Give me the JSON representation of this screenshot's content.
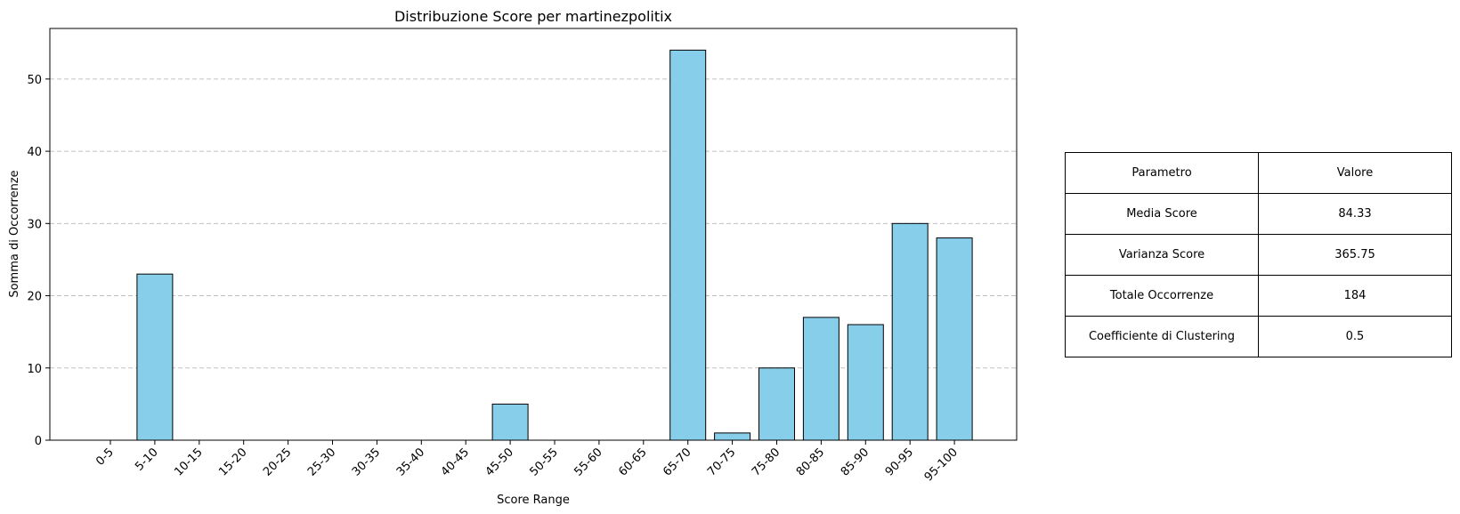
{
  "chart_data": {
    "type": "bar",
    "title": "Distribuzione Score per martinezpolitix",
    "xlabel": "Score Range",
    "ylabel": "Somma di Occorrenze",
    "categories": [
      "0-5",
      "5-10",
      "10-15",
      "15-20",
      "20-25",
      "25-30",
      "30-35",
      "35-40",
      "40-45",
      "45-50",
      "50-55",
      "55-60",
      "60-65",
      "65-70",
      "70-75",
      "75-80",
      "80-85",
      "85-90",
      "90-95",
      "95-100"
    ],
    "values": [
      0,
      23,
      0,
      0,
      0,
      0,
      0,
      0,
      0,
      5,
      0,
      0,
      0,
      54,
      1,
      10,
      17,
      16,
      30,
      28
    ],
    "ylim": [
      0,
      57
    ],
    "yticks": [
      0,
      10,
      20,
      30,
      40,
      50
    ],
    "grid": "y-dashed",
    "bar_color": "#87CEEB",
    "edge_color": "#000000",
    "grid_color": "#c0c0c0"
  },
  "table": {
    "header": {
      "param": "Parametro",
      "value": "Valore"
    },
    "rows": [
      {
        "param": "Media Score",
        "value": "84.33"
      },
      {
        "param": "Varianza Score",
        "value": "365.75"
      },
      {
        "param": "Totale Occorrenze",
        "value": "184"
      },
      {
        "param": "Coefficiente di Clustering",
        "value": "0.5"
      }
    ]
  }
}
